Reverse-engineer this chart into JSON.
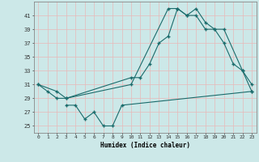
{
  "xlabel": "Humidex (Indice chaleur)",
  "bg_color": "#cce8e8",
  "line_color": "#1a6b6b",
  "grid_color": "#b0d8d8",
  "xlim": [
    -0.5,
    23.5
  ],
  "ylim": [
    24,
    43
  ],
  "xticks": [
    0,
    1,
    2,
    3,
    4,
    5,
    6,
    7,
    8,
    9,
    10,
    11,
    12,
    13,
    14,
    15,
    16,
    17,
    18,
    19,
    20,
    21,
    22,
    23
  ],
  "yticks": [
    25,
    27,
    29,
    31,
    33,
    35,
    37,
    39,
    41
  ],
  "line1": {
    "x": [
      0,
      1,
      2,
      3,
      10,
      11,
      12,
      13,
      14,
      15,
      16,
      17,
      18,
      19,
      20,
      22,
      23
    ],
    "y": [
      31,
      30,
      29,
      29,
      32,
      32,
      34,
      37,
      38,
      42,
      41,
      42,
      40,
      39,
      39,
      33,
      31
    ]
  },
  "line2": {
    "x": [
      0,
      2,
      3,
      10,
      14,
      15,
      16,
      17,
      18,
      19,
      20,
      21,
      22,
      23
    ],
    "y": [
      31,
      30,
      29,
      31,
      42,
      42,
      41,
      41,
      39,
      39,
      37,
      34,
      33,
      30
    ]
  },
  "line3": {
    "x": [
      3,
      4,
      5,
      6,
      7,
      8,
      9,
      23
    ],
    "y": [
      28,
      28,
      26,
      27,
      25,
      25,
      28,
      30
    ]
  }
}
